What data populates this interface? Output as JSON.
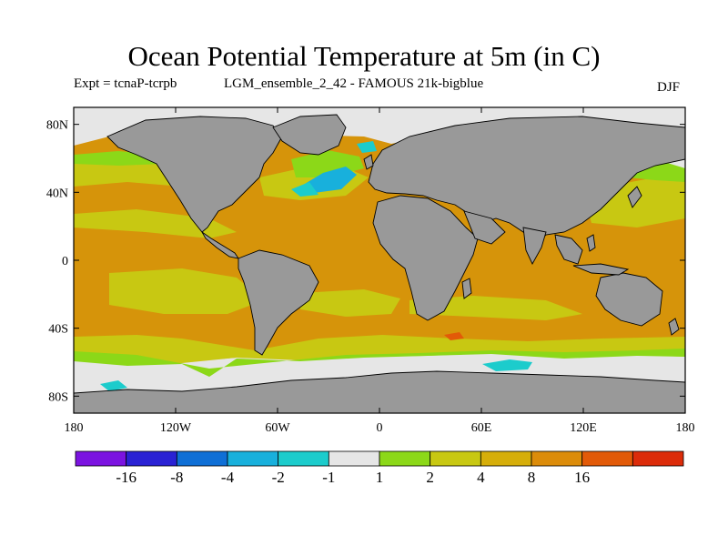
{
  "title": "Ocean Potential Temperature at 5m (in C)",
  "subtitle_left": "Expt = tcnaP-tcrpb",
  "subtitle_mid": "LGM_ensemble_2_42 - FAMOUS 21k-bigblue",
  "season": "DJF",
  "map": {
    "projection": "equirectangular",
    "lon_range": [
      -180,
      180
    ],
    "lat_range": [
      -90,
      90
    ],
    "land_color": "#999999",
    "lat_ticks": [
      {
        "value": 80,
        "label": "80N"
      },
      {
        "value": 40,
        "label": "40N"
      },
      {
        "value": 0,
        "label": "0"
      },
      {
        "value": -40,
        "label": "40S"
      },
      {
        "value": -80,
        "label": "80S"
      }
    ],
    "lon_ticks": [
      {
        "value": -180,
        "label": "180"
      },
      {
        "value": -120,
        "label": "120W"
      },
      {
        "value": -60,
        "label": "60W"
      },
      {
        "value": 0,
        "label": "0"
      },
      {
        "value": 60,
        "label": "60E"
      },
      {
        "value": 120,
        "label": "120E"
      },
      {
        "value": 180,
        "label": "180"
      }
    ]
  },
  "colorbar": {
    "colors": [
      "#7b13e0",
      "#2a22d4",
      "#0f6fd6",
      "#18b0dc",
      "#1ccccc",
      "#e6e6e6",
      "#8cd818",
      "#c8c812",
      "#d6ae0a",
      "#dc8c0a",
      "#e25a08",
      "#dc2c0a"
    ],
    "labels": [
      "-16",
      "-8",
      "-4",
      "-2",
      "-1",
      "1",
      "2",
      "4",
      "8",
      "16"
    ]
  },
  "fields": {
    "cool_fill": "#e6e6e6",
    "orange": "#d6940a",
    "yellow": "#c8c812",
    "green": "#8cd818",
    "cyan": "#1ccccc",
    "light_cyan": "#18b0dc",
    "red_orange": "#e25a08"
  }
}
